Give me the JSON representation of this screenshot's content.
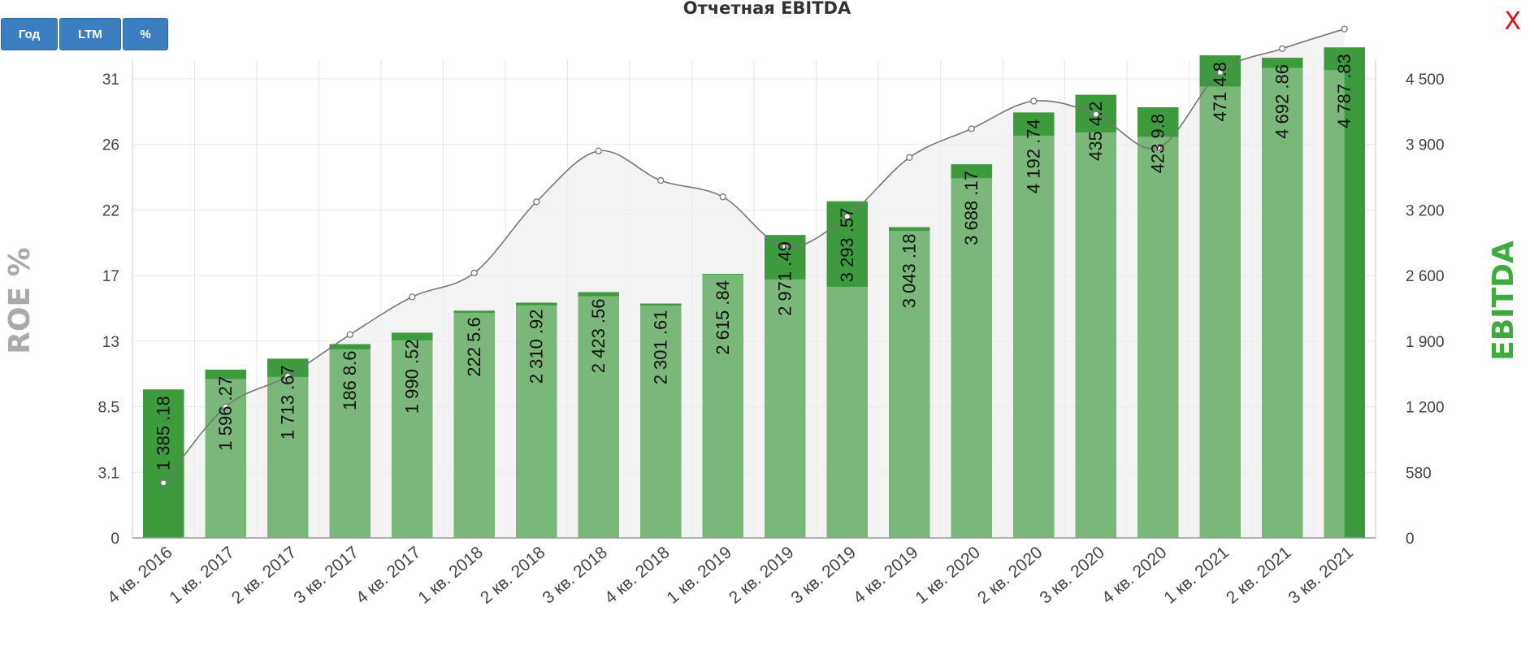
{
  "toolbar": {
    "year_label": "Год",
    "ltm_label": "LTM",
    "percent_label": "%"
  },
  "header": {
    "title": "Отчетная EBITDA",
    "close_label": "X"
  },
  "chart_data": {
    "type": "bar+line",
    "title": "Отчетная EBITDA",
    "categories": [
      "4 кв. 2016",
      "1 кв. 2017",
      "2 кв. 2017",
      "3 кв. 2017",
      "4 кв. 2017",
      "1 кв. 2018",
      "2 кв. 2018",
      "3 кв. 2018",
      "4 кв. 2018",
      "1 кв. 2019",
      "2 кв. 2019",
      "3 кв. 2019",
      "4 кв. 2019",
      "1 кв. 2020",
      "2 кв. 2020",
      "3 кв. 2020",
      "4 кв. 2020",
      "1 кв. 2021",
      "2 кв. 2021",
      "3 кв. 2021"
    ],
    "bars": {
      "axis": "right",
      "values": [
        1385.18,
        1596.27,
        1713.67,
        1868.6,
        1990.52,
        2225.6,
        2310.92,
        2423.56,
        2301.61,
        2615.84,
        2971.49,
        3293.57,
        3043.18,
        3688.17,
        4192.74,
        4354.2,
        4239.8,
        4714.8,
        4692.86,
        4787.83
      ],
      "labels": [
        "1 385 .18",
        "1 596 .27",
        "1 713 .67",
        "186 8.6",
        "1 990 .52",
        "222 5.6",
        "2 310 .92",
        "2 423 .56",
        "2 301 .61",
        "2 615 .84",
        "2 971 .49",
        "3 293 .57",
        "3 043 .18",
        "3 688 .17",
        "4 192 .74",
        "435 4.2",
        "423 9.8",
        "471 4.8",
        "4 692 .86",
        "4 787 .83"
      ],
      "color": "#3d9b3d",
      "overlay_color": "#7ab87a",
      "overlay_values": [
        0,
        1496,
        1519,
        1813,
        1910,
        2203,
        2283,
        2380,
        2280,
        2609,
        2560,
        2480,
        3010,
        3540,
        3980,
        4010,
        3970,
        4430,
        4600,
        4580
      ]
    },
    "line": {
      "axis": "left",
      "name": "ROE %",
      "values": [
        2.6,
        8.5,
        10.6,
        13.4,
        15.7,
        17.2,
        22.5,
        25.6,
        23.8,
        22.8,
        19.2,
        21.5,
        25.2,
        27.2,
        29.3,
        28.3,
        25.8,
        31.5,
        33.3,
        34.8
      ],
      "color": "#777777",
      "fill": "#eeeeee"
    },
    "left_axis": {
      "label": "ROE %",
      "ticks": [
        0,
        3.1,
        8.5,
        13,
        17,
        22,
        26,
        31
      ],
      "labels": [
        "0",
        "3.1",
        "8.5",
        "13",
        "17",
        "22",
        "26",
        "31"
      ],
      "color": "#aaaaaa"
    },
    "right_axis": {
      "label": "EBITDA",
      "ticks": [
        0,
        580,
        1200,
        1900,
        2600,
        3200,
        3900,
        4500
      ],
      "labels": [
        "0",
        "580",
        "1 200",
        "1 900",
        "2 600",
        "3 200",
        "3 900",
        "4 500"
      ],
      "color": "#3dab3d"
    },
    "grid": true
  }
}
